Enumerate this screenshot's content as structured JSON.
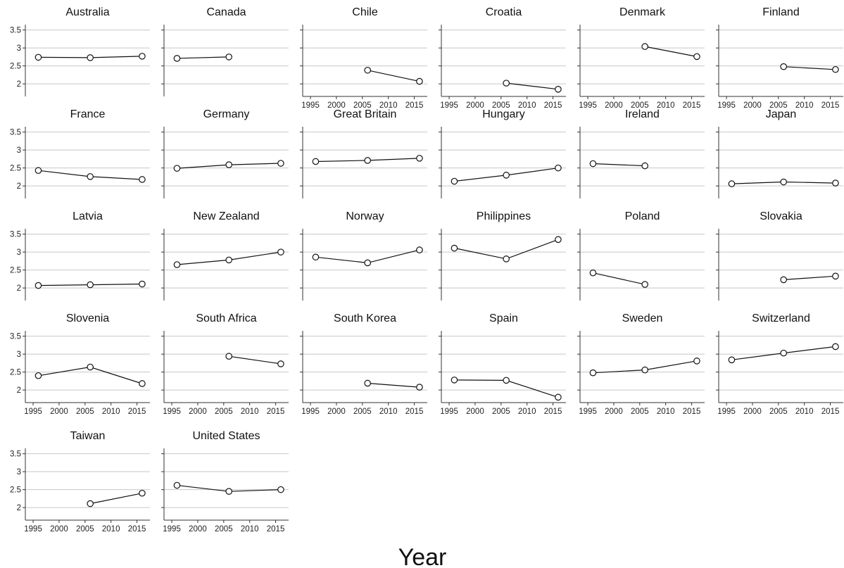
{
  "chart_data": {
    "type": "line",
    "xlabel": "Year",
    "ylabel": "",
    "ylim": [
      1.65,
      3.65
    ],
    "xlim": [
      1993.5,
      2017.5
    ],
    "yticks": [
      2,
      2.5,
      3,
      3.5
    ],
    "ytick_labels": [
      "2",
      "2.5",
      "3",
      "3.5"
    ],
    "xticks": [
      1995,
      2000,
      2005,
      2010,
      2015
    ],
    "xtick_labels": [
      "1995",
      "2000",
      "2005",
      "2010",
      "2015"
    ],
    "grid": true,
    "legend": "none",
    "panels": [
      {
        "name": "Australia",
        "x": [
          1996,
          2006,
          2016
        ],
        "values": [
          2.74,
          2.73,
          2.77
        ]
      },
      {
        "name": "Canada",
        "x": [
          1996,
          2006
        ],
        "values": [
          2.71,
          2.75
        ]
      },
      {
        "name": "Chile",
        "x": [
          2006,
          2016
        ],
        "values": [
          2.38,
          2.07
        ]
      },
      {
        "name": "Croatia",
        "x": [
          2006,
          2016
        ],
        "values": [
          2.02,
          1.85
        ]
      },
      {
        "name": "Denmark",
        "x": [
          2006,
          2016
        ],
        "values": [
          3.04,
          2.76
        ]
      },
      {
        "name": "Finland",
        "x": [
          2006,
          2016
        ],
        "values": [
          2.48,
          2.4
        ]
      },
      {
        "name": "France",
        "x": [
          1996,
          2006,
          2016
        ],
        "values": [
          2.43,
          2.26,
          2.18
        ]
      },
      {
        "name": "Germany",
        "x": [
          1996,
          2006,
          2016
        ],
        "values": [
          2.49,
          2.59,
          2.63
        ]
      },
      {
        "name": "Great Britain",
        "x": [
          1996,
          2006,
          2016
        ],
        "values": [
          2.68,
          2.71,
          2.77
        ]
      },
      {
        "name": "Hungary",
        "x": [
          1996,
          2006,
          2016
        ],
        "values": [
          2.13,
          2.3,
          2.5
        ]
      },
      {
        "name": "Ireland",
        "x": [
          1996,
          2006
        ],
        "values": [
          2.62,
          2.56
        ]
      },
      {
        "name": "Japan",
        "x": [
          1996,
          2006,
          2016
        ],
        "values": [
          2.06,
          2.11,
          2.08
        ]
      },
      {
        "name": "Latvia",
        "x": [
          1996,
          2006,
          2016
        ],
        "values": [
          2.07,
          2.09,
          2.11
        ]
      },
      {
        "name": "New Zealand",
        "x": [
          1996,
          2006,
          2016
        ],
        "values": [
          2.65,
          2.78,
          3.0
        ]
      },
      {
        "name": "Norway",
        "x": [
          1996,
          2006,
          2016
        ],
        "values": [
          2.86,
          2.7,
          3.06
        ]
      },
      {
        "name": "Philippines",
        "x": [
          1996,
          2006,
          2016
        ],
        "values": [
          3.11,
          2.81,
          3.35
        ]
      },
      {
        "name": "Poland",
        "x": [
          1996,
          2006
        ],
        "values": [
          2.42,
          2.1
        ]
      },
      {
        "name": "Slovakia",
        "x": [
          2006,
          2016
        ],
        "values": [
          2.23,
          2.33
        ]
      },
      {
        "name": "Slovenia",
        "x": [
          1996,
          2006,
          2016
        ],
        "values": [
          2.4,
          2.64,
          2.18
        ]
      },
      {
        "name": "South Africa",
        "x": [
          2006,
          2016
        ],
        "values": [
          2.94,
          2.73
        ]
      },
      {
        "name": "South Korea",
        "x": [
          2006,
          2016
        ],
        "values": [
          2.19,
          2.08
        ]
      },
      {
        "name": "Spain",
        "x": [
          1996,
          2006,
          2016
        ],
        "values": [
          2.28,
          2.27,
          1.8
        ]
      },
      {
        "name": "Sweden",
        "x": [
          1996,
          2006,
          2016
        ],
        "values": [
          2.48,
          2.56,
          2.81
        ]
      },
      {
        "name": "Switzerland",
        "x": [
          1996,
          2006,
          2016
        ],
        "values": [
          2.84,
          3.03,
          3.21
        ]
      },
      {
        "name": "Taiwan",
        "x": [
          2006,
          2016
        ],
        "values": [
          2.11,
          2.4
        ]
      },
      {
        "name": "United States",
        "x": [
          1996,
          2006,
          2016
        ],
        "values": [
          2.62,
          2.45,
          2.5
        ]
      }
    ]
  }
}
